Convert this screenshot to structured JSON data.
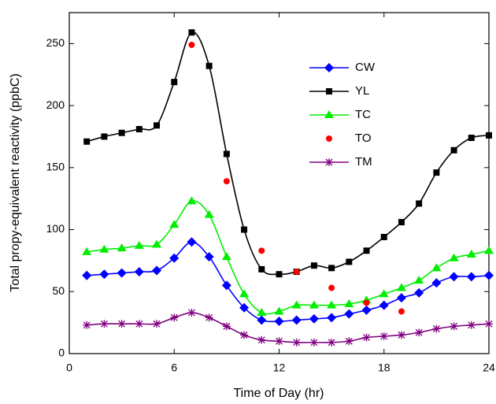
{
  "chart_data": {
    "type": "line",
    "xlabel": "Time of Day (hr)",
    "ylabel": "Total propy-equivalent reactivity (ppbC)",
    "xlim": [
      0,
      24
    ],
    "xticks": [
      0,
      6,
      12,
      18,
      24
    ],
    "ylim": [
      0,
      275
    ],
    "yticks": [
      0,
      50,
      100,
      150,
      200,
      250
    ],
    "series": [
      {
        "name": "CW",
        "color": "#0000ff",
        "marker": "diamond",
        "line": true,
        "x": [
          1,
          2,
          3,
          4,
          5,
          6,
          7,
          8,
          9,
          10,
          11,
          12,
          13,
          14,
          15,
          16,
          17,
          18,
          19,
          20,
          21,
          22,
          23,
          24
        ],
        "values": [
          63,
          64,
          65,
          66,
          67,
          77,
          90,
          78,
          55,
          37,
          27,
          26,
          27,
          28,
          29,
          32,
          35,
          39,
          45,
          49,
          57,
          62,
          62,
          63
        ]
      },
      {
        "name": "YL",
        "color": "#000000",
        "marker": "square",
        "line": true,
        "x": [
          1,
          2,
          3,
          4,
          5,
          6,
          7,
          8,
          9,
          10,
          11,
          12,
          13,
          14,
          15,
          16,
          17,
          18,
          19,
          20,
          21,
          22,
          23,
          24
        ],
        "values": [
          171,
          175,
          178,
          181,
          184,
          219,
          259,
          232,
          161,
          100,
          68,
          64,
          66,
          71,
          69,
          74,
          83,
          94,
          106,
          121,
          146,
          164,
          174,
          176
        ]
      },
      {
        "name": "TC",
        "color": "#00ee00",
        "marker": "triangle",
        "line": true,
        "x": [
          1,
          2,
          3,
          4,
          5,
          6,
          7,
          8,
          9,
          10,
          11,
          12,
          13,
          14,
          15,
          16,
          17,
          18,
          19,
          20,
          21,
          22,
          23,
          24
        ],
        "values": [
          82,
          84,
          85,
          87,
          88,
          104,
          123,
          112,
          78,
          48,
          33,
          34,
          39,
          39,
          39,
          40,
          43,
          48,
          53,
          59,
          69,
          77,
          80,
          83
        ]
      },
      {
        "name": "TO",
        "color": "#ff0000",
        "marker": "circle",
        "line": false,
        "x": [
          7,
          9,
          11,
          13,
          15,
          17,
          19
        ],
        "values": [
          249,
          139,
          83,
          66,
          53,
          41,
          34
        ]
      },
      {
        "name": "TM",
        "color": "#800080",
        "marker": "star",
        "line": true,
        "x": [
          1,
          2,
          3,
          4,
          5,
          6,
          7,
          8,
          9,
          10,
          11,
          12,
          13,
          14,
          15,
          16,
          17,
          18,
          19,
          20,
          21,
          22,
          23,
          24
        ],
        "values": [
          23,
          24,
          24,
          24,
          24,
          29,
          33,
          29,
          22,
          15,
          11,
          10,
          9,
          9,
          9,
          10,
          13,
          14,
          15,
          17,
          20,
          22,
          23,
          24
        ]
      }
    ]
  }
}
